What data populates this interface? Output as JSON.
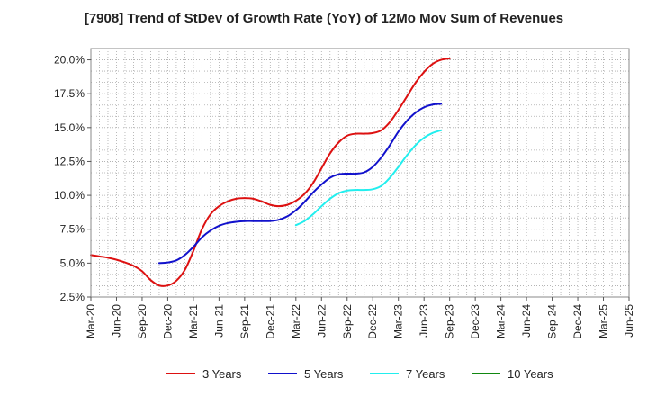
{
  "chart_data": {
    "type": "line",
    "title": "[7908]  Trend of StDev of Growth Rate (YoY) of 12Mo Mov Sum of Revenues",
    "xlabel": "",
    "ylabel": "",
    "ylim": [
      2.5,
      20.833
    ],
    "y_ticks": [
      2.5,
      5.0,
      7.5,
      10.0,
      12.5,
      15.0,
      17.5,
      20.0
    ],
    "y_tick_labels": [
      "2.5%",
      "5.0%",
      "7.5%",
      "10.0%",
      "12.5%",
      "15.0%",
      "17.5%",
      "20.0%"
    ],
    "x_tick_labels": [
      "Mar-20",
      "Jun-20",
      "Sep-20",
      "Dec-20",
      "Mar-21",
      "Jun-21",
      "Sep-21",
      "Dec-21",
      "Mar-22",
      "Jun-22",
      "Sep-22",
      "Dec-22",
      "Mar-23",
      "Jun-23",
      "Sep-23",
      "Dec-23",
      "Mar-24",
      "Jun-24",
      "Sep-24",
      "Dec-24",
      "Mar-25",
      "Jun-25"
    ],
    "grid": true,
    "legend_position": "bottom",
    "series": [
      {
        "name": "3 Years",
        "color": "#dd1111",
        "start_index": 0,
        "values": [
          5.6,
          5.5,
          5.4,
          5.25,
          5.05,
          4.8,
          4.4,
          3.75,
          3.35,
          3.35,
          3.7,
          4.5,
          5.9,
          7.5,
          8.6,
          9.2,
          9.55,
          9.75,
          9.8,
          9.75,
          9.55,
          9.3,
          9.2,
          9.3,
          9.6,
          10.1,
          10.9,
          12.0,
          13.1,
          13.9,
          14.4,
          14.55,
          14.55,
          14.6,
          14.8,
          15.4,
          16.3,
          17.3,
          18.3,
          19.1,
          19.7,
          20.0,
          20.1
        ]
      },
      {
        "name": "5 Years",
        "color": "#1111cc",
        "start_index": 8,
        "values": [
          5.0,
          5.05,
          5.2,
          5.6,
          6.2,
          6.9,
          7.4,
          7.75,
          7.95,
          8.05,
          8.1,
          8.1,
          8.1,
          8.1,
          8.2,
          8.45,
          8.9,
          9.5,
          10.2,
          10.8,
          11.3,
          11.55,
          11.6,
          11.6,
          11.7,
          12.1,
          12.8,
          13.7,
          14.7,
          15.5,
          16.1,
          16.5,
          16.7,
          16.75
        ]
      },
      {
        "name": "7 Years",
        "color": "#22eeee",
        "start_index": 24,
        "values": [
          7.8,
          8.1,
          8.6,
          9.2,
          9.75,
          10.15,
          10.35,
          10.4,
          10.4,
          10.45,
          10.7,
          11.3,
          12.1,
          12.95,
          13.7,
          14.25,
          14.6,
          14.8
        ]
      },
      {
        "name": "10 Years",
        "color": "#118811",
        "start_index": 0,
        "values": []
      }
    ]
  }
}
